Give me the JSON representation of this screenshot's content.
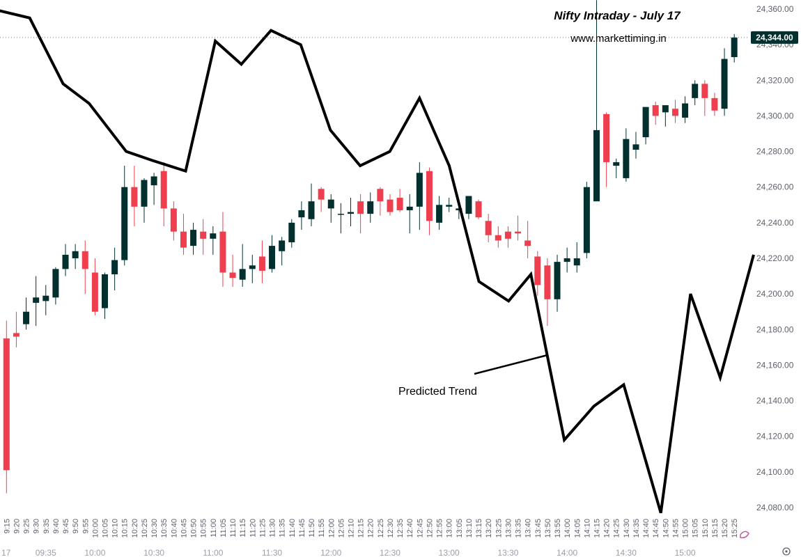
{
  "chart_data": {
    "type": "candlestick",
    "title": "Nifty Intraday - July 17",
    "subtitle": "www.markettiming.in",
    "annotation": "Predicted Trend",
    "date_label": "17",
    "last_price_label": "24,344.00",
    "last_price": 24344,
    "ylim": [
      24075,
      24365
    ],
    "y_ticks": [
      24080,
      24100,
      24120,
      24140,
      24160,
      24180,
      24200,
      24220,
      24240,
      24260,
      24280,
      24300,
      24320,
      24340,
      24360
    ],
    "y_tick_labels": [
      "24,080.00",
      "24,100.00",
      "24,120.00",
      "24,140.00",
      "24,160.00",
      "24,180.00",
      "24,200.00",
      "24,220.00",
      "24,240.00",
      "24,260.00",
      "24,280.00",
      "24,300.00",
      "24,320.00",
      "24,340.00",
      "24,360.00"
    ],
    "times": [
      "9:15",
      "9:20",
      "9:25",
      "9:30",
      "9:35",
      "9:40",
      "9:45",
      "9:50",
      "9:55",
      "10:00",
      "10:05",
      "10:10",
      "10:15",
      "10:20",
      "10:25",
      "10:30",
      "10:35",
      "10:40",
      "10:45",
      "10:50",
      "10:55",
      "11:00",
      "11:05",
      "11:10",
      "11:15",
      "11:20",
      "11:25",
      "11:30",
      "11:35",
      "11:40",
      "11:45",
      "11:50",
      "11:55",
      "12:00",
      "12:05",
      "12:10",
      "12:15",
      "12:20",
      "12:25",
      "12:30",
      "12:35",
      "12:40",
      "12:45",
      "12:50",
      "12:55",
      "13:00",
      "13:05",
      "13:10",
      "13:15",
      "13:20",
      "13:25",
      "13:30",
      "13:35",
      "13:40",
      "13:45",
      "13:50",
      "13:55",
      "14:00",
      "14:05",
      "14:10",
      "14:15",
      "14:20",
      "14:25",
      "14:30",
      "14:35",
      "14:40",
      "14:45",
      "14:50",
      "14:55",
      "15:00",
      "15:05",
      "15:10",
      "15:15",
      "15:20",
      "15:25"
    ],
    "candles": [
      [
        24175,
        24185,
        24088,
        24101
      ],
      [
        24178,
        24190,
        24170,
        24176
      ],
      [
        24183,
        24198,
        24180,
        24190
      ],
      [
        24195,
        24210,
        24182,
        24198
      ],
      [
        24196,
        24205,
        24188,
        24199
      ],
      [
        24198,
        24215,
        24194,
        24214
      ],
      [
        24214,
        24228,
        24210,
        24222
      ],
      [
        24220,
        24228,
        24214,
        24224
      ],
      [
        24224,
        24230,
        24200,
        24214
      ],
      [
        24212,
        24220,
        24188,
        24190
      ],
      [
        24192,
        24212,
        24186,
        24211
      ],
      [
        24211,
        24226,
        24202,
        24219
      ],
      [
        24219,
        24272,
        24216,
        24260
      ],
      [
        24260,
        24272,
        24238,
        24249
      ],
      [
        24249,
        24265,
        24240,
        24264
      ],
      [
        24261,
        24268,
        24250,
        24266
      ],
      [
        24269,
        24274,
        24238,
        24248
      ],
      [
        24248,
        24252,
        24230,
        24235
      ],
      [
        24235,
        24245,
        24222,
        24226
      ],
      [
        24227,
        24240,
        24222,
        24236
      ],
      [
        24235,
        24242,
        24222,
        24231
      ],
      [
        24231,
        24238,
        24222,
        24234
      ],
      [
        24235,
        24246,
        24204,
        24212
      ],
      [
        24212,
        24222,
        24204,
        24209
      ],
      [
        24208,
        24228,
        24204,
        24214
      ],
      [
        24214,
        24222,
        24206,
        24216
      ],
      [
        24221,
        24230,
        24206,
        24213
      ],
      [
        24214,
        24233,
        24212,
        24227
      ],
      [
        24224,
        24232,
        24216,
        24230
      ],
      [
        24229,
        24242,
        24226,
        24240
      ],
      [
        24243,
        24252,
        24236,
        24247
      ],
      [
        24242,
        24262,
        24238,
        24252
      ],
      [
        24259,
        24260,
        24246,
        24253
      ],
      [
        24248,
        24256,
        24240,
        24253
      ],
      [
        24245,
        24251,
        24234,
        24245
      ],
      [
        24245,
        24254,
        24238,
        24246
      ],
      [
        24252,
        24256,
        24234,
        24245
      ],
      [
        24245,
        24257,
        24240,
        24252
      ],
      [
        24259,
        24260,
        24244,
        24252
      ],
      [
        24253,
        24256,
        24244,
        24246
      ],
      [
        24254,
        24259,
        24246,
        24247
      ],
      [
        24247,
        24256,
        24234,
        24249
      ],
      [
        24249,
        24274,
        24236,
        24268
      ],
      [
        24269,
        24271,
        24233,
        24241
      ],
      [
        24240,
        24255,
        24236,
        24250
      ],
      [
        24249,
        24254,
        24246,
        24250
      ],
      [
        24247,
        24253,
        24242,
        24248
      ],
      [
        24245,
        24255,
        24242,
        24255
      ],
      [
        24252,
        24253,
        24242,
        24243
      ],
      [
        24241,
        24245,
        24229,
        24233
      ],
      [
        24233,
        24238,
        24226,
        24230
      ],
      [
        24235,
        24238,
        24226,
        24231
      ],
      [
        24235,
        24244,
        24230,
        24234
      ],
      [
        24230,
        24241,
        24220,
        24227
      ],
      [
        24221,
        24224,
        24199,
        24205
      ],
      [
        24216,
        24220,
        24182,
        24197
      ],
      [
        24197,
        24222,
        24190,
        24218
      ],
      [
        24218,
        24226,
        24212,
        24220
      ],
      [
        24216,
        24229,
        24212,
        24220
      ],
      [
        24223,
        24263,
        24220,
        24260
      ],
      [
        24252,
        24365,
        24252,
        24292
      ],
      [
        24301,
        24302,
        24260,
        24274
      ],
      [
        24272,
        24276,
        24265,
        24274
      ],
      [
        24265,
        24293,
        24263,
        24287
      ],
      [
        24281,
        24291,
        24276,
        24284
      ],
      [
        24288,
        24303,
        24284,
        24305
      ],
      [
        24306,
        24308,
        24295,
        24300
      ],
      [
        24302,
        24305,
        24294,
        24306
      ],
      [
        24304,
        24309,
        24296,
        24300
      ],
      [
        24299,
        24311,
        24296,
        24307
      ],
      [
        24310,
        24320,
        24306,
        24318
      ],
      [
        24318,
        24320,
        24300,
        24310
      ],
      [
        24310,
        24313,
        24300,
        24303
      ],
      [
        24304,
        24338,
        24300,
        24332
      ],
      [
        24333,
        24346,
        24330,
        24344
      ]
    ],
    "predicted_trend": [
      [
        -2,
        24360
      ],
      [
        8,
        24355
      ],
      [
        17,
        24318
      ],
      [
        24,
        24307
      ],
      [
        34,
        24280
      ],
      [
        41,
        24275
      ],
      [
        50,
        24269
      ],
      [
        58,
        24342
      ],
      [
        65,
        24329
      ],
      [
        73,
        24348
      ],
      [
        81,
        24340
      ],
      [
        89,
        24292
      ],
      [
        97,
        24272
      ],
      [
        105,
        24280
      ],
      [
        113,
        24310
      ],
      [
        121,
        24272
      ],
      [
        129,
        24207
      ],
      [
        137,
        24196
      ],
      [
        143,
        24211
      ],
      [
        152,
        24118
      ],
      [
        160,
        24137
      ],
      [
        168,
        24149
      ],
      [
        178,
        24077
      ],
      [
        186,
        24200
      ],
      [
        194,
        24153
      ],
      [
        203,
        24222
      ]
    ],
    "x_labels_vertical": [
      "9:15",
      "9:20",
      "9:25",
      "9:30",
      "9:35",
      "9:40",
      "9:45",
      "9:50",
      "9:55",
      "10:00",
      "10:05",
      "10:10",
      "10:15",
      "10:20",
      "10:25",
      "10:30",
      "10:35",
      "10:40",
      "10:45",
      "10:50",
      "10:55",
      "11:00",
      "11:05",
      "11:10",
      "11:15",
      "11:20",
      "11:25",
      "11:30",
      "11:35",
      "11:40",
      "11:45",
      "11:50",
      "11:55",
      "12:00",
      "12:05",
      "12:10",
      "12:15",
      "12:20",
      "12:25",
      "12:30",
      "12:35",
      "12:40",
      "12:45",
      "12:50",
      "12:55",
      "13:00",
      "13:05",
      "13:10",
      "13:15",
      "13:20",
      "13:25",
      "13:30",
      "13:35",
      "13:40",
      "13:45",
      "13:50",
      "13:55",
      "14:00",
      "14:05",
      "14:10",
      "14:15",
      "14:20",
      "14:25",
      "14:30",
      "14:35",
      "14:40",
      "14:45",
      "14:50",
      "14:55",
      "15:00",
      "15:05",
      "15:10",
      "15:15",
      "15:20",
      "15:25"
    ],
    "x_labels_major": [
      {
        "label": "09:35",
        "candle": 4
      },
      {
        "label": "10:00",
        "candle": 9
      },
      {
        "label": "10:30",
        "candle": 15
      },
      {
        "label": "11:00",
        "candle": 21
      },
      {
        "label": "11:30",
        "candle": 27
      },
      {
        "label": "12:00",
        "candle": 33
      },
      {
        "label": "12:30",
        "candle": 39
      },
      {
        "label": "13:00",
        "candle": 45
      },
      {
        "label": "13:30",
        "candle": 51
      },
      {
        "label": "14:00",
        "candle": 57
      },
      {
        "label": "14:30",
        "candle": 63
      },
      {
        "label": "15:00",
        "candle": 69
      }
    ],
    "colors": {
      "up": "#01302f",
      "down": "#ef3e4e",
      "trend": "#000000",
      "axis_text": "#5d606b",
      "price_tag": "#01302f"
    }
  }
}
